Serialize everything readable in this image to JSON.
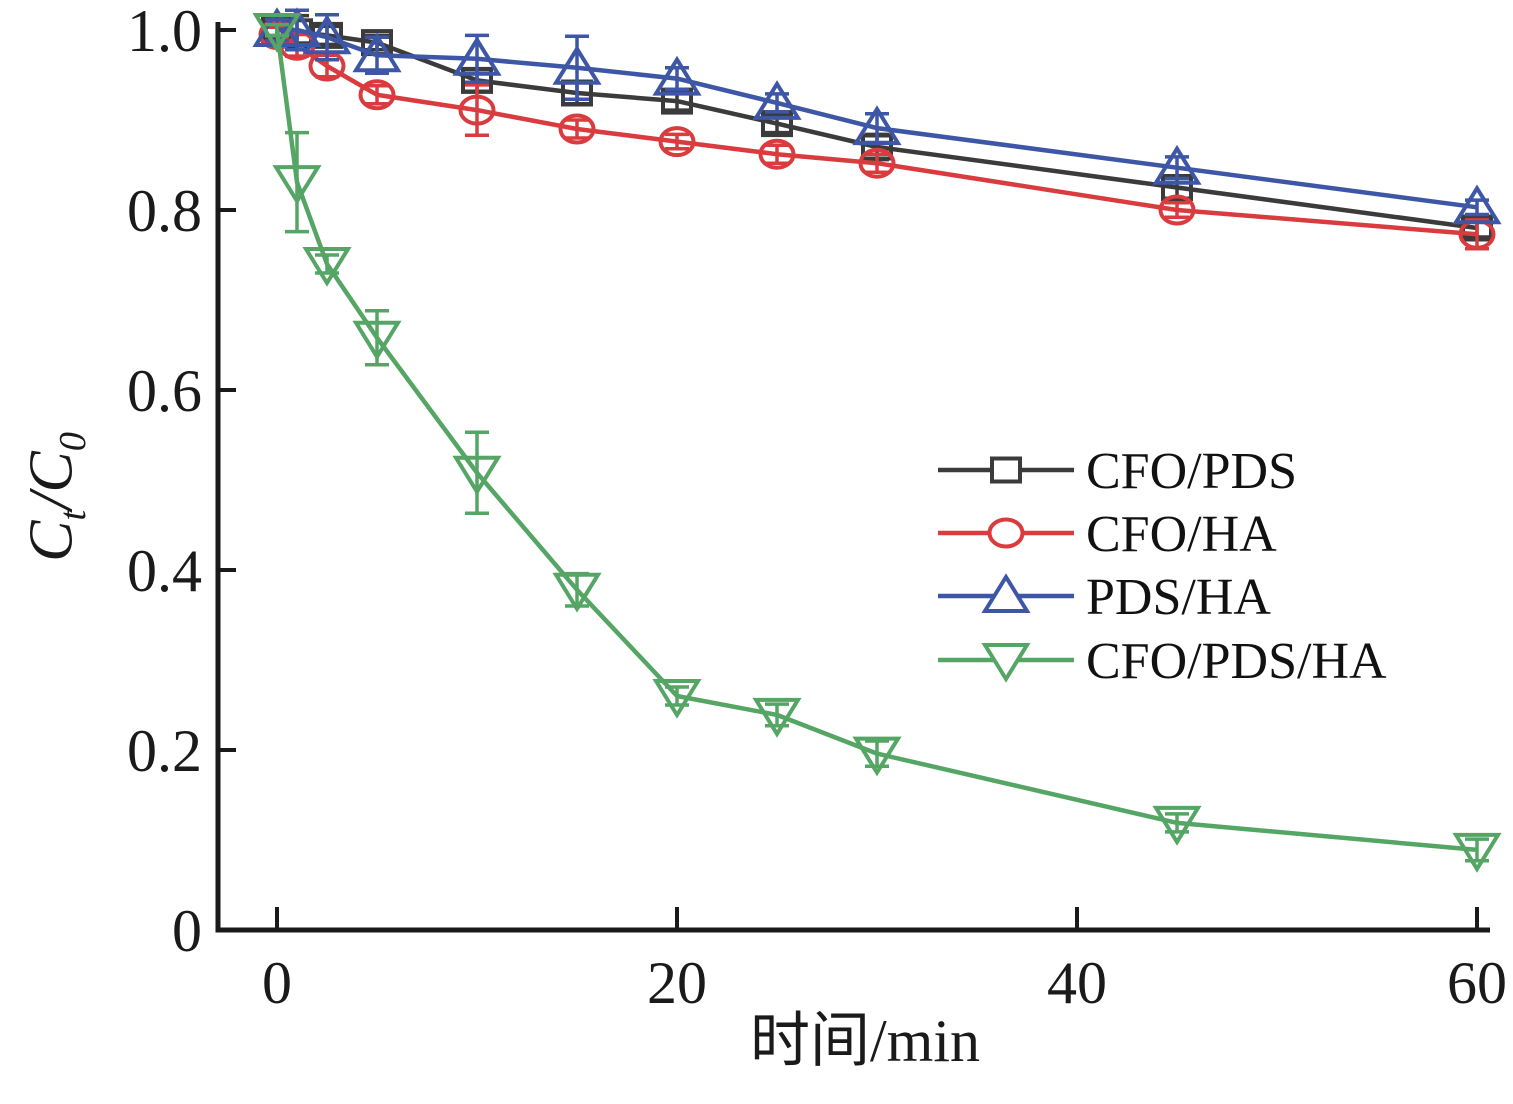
{
  "chart_data": {
    "type": "line",
    "title": "",
    "xlabel": "时间/min",
    "ylabel": "Ct/C0",
    "ylabel_parts": [
      {
        "text": "C",
        "sub": false
      },
      {
        "text": "t",
        "sub": true
      },
      {
        "text": "/",
        "sub": false
      },
      {
        "text": "C",
        "sub": false
      },
      {
        "text": "0",
        "sub": true
      }
    ],
    "xlim": [
      -3,
      60.7
    ],
    "ylim": [
      0,
      1.01
    ],
    "grid": false,
    "legend_position": "center-right",
    "xticks": [
      0,
      20,
      40,
      60
    ],
    "xtick_labels": [
      "0",
      "20",
      "40",
      "60"
    ],
    "yticks": [
      0,
      0.2,
      0.4,
      0.6,
      0.8,
      1.0
    ],
    "ytick_labels": [
      "0",
      "0.2",
      "0.4",
      "0.6",
      "0.8",
      "1.0"
    ],
    "x": [
      0,
      1,
      2.5,
      5,
      10,
      15,
      20,
      25,
      30,
      45,
      60
    ],
    "series": [
      {
        "name": "CFO/PDS",
        "color": "#3b3b3b",
        "marker": "square",
        "values": [
          1.0,
          0.998,
          0.994,
          0.986,
          0.944,
          0.93,
          0.921,
          0.896,
          0.87,
          0.825,
          0.78
        ],
        "errors": [
          0.01,
          0.018,
          0.01,
          0.008,
          0.012,
          0.012,
          0.01,
          0.01,
          0.014,
          0.012,
          0.01
        ]
      },
      {
        "name": "CFO/HA",
        "color": "#d93b3e",
        "marker": "circle",
        "values": [
          0.995,
          0.983,
          0.96,
          0.928,
          0.911,
          0.89,
          0.876,
          0.862,
          0.852,
          0.8,
          0.773
        ],
        "errors": [
          0.008,
          0.012,
          0.012,
          0.01,
          0.028,
          0.01,
          0.008,
          0.01,
          0.01,
          0.008,
          0.016
        ]
      },
      {
        "name": "PDS/HA",
        "color": "#3e56a6",
        "marker": "triangle-up",
        "values": [
          1.0,
          1.0,
          0.992,
          0.972,
          0.968,
          0.958,
          0.946,
          0.919,
          0.891,
          0.847,
          0.803
        ],
        "errors": [
          0.012,
          0.022,
          0.025,
          0.02,
          0.026,
          0.035,
          0.012,
          0.01,
          0.016,
          0.012,
          0.008
        ]
      },
      {
        "name": "CFO/PDS/HA",
        "color": "#55a565",
        "marker": "triangle-down",
        "values": [
          1.0,
          0.831,
          0.74,
          0.658,
          0.508,
          0.378,
          0.26,
          0.239,
          0.196,
          0.119,
          0.089
        ],
        "errors": [
          0.006,
          0.055,
          0.01,
          0.03,
          0.045,
          0.018,
          0.01,
          0.012,
          0.014,
          0.01,
          0.012
        ]
      }
    ],
    "axis_color": "#1a1a1a"
  }
}
